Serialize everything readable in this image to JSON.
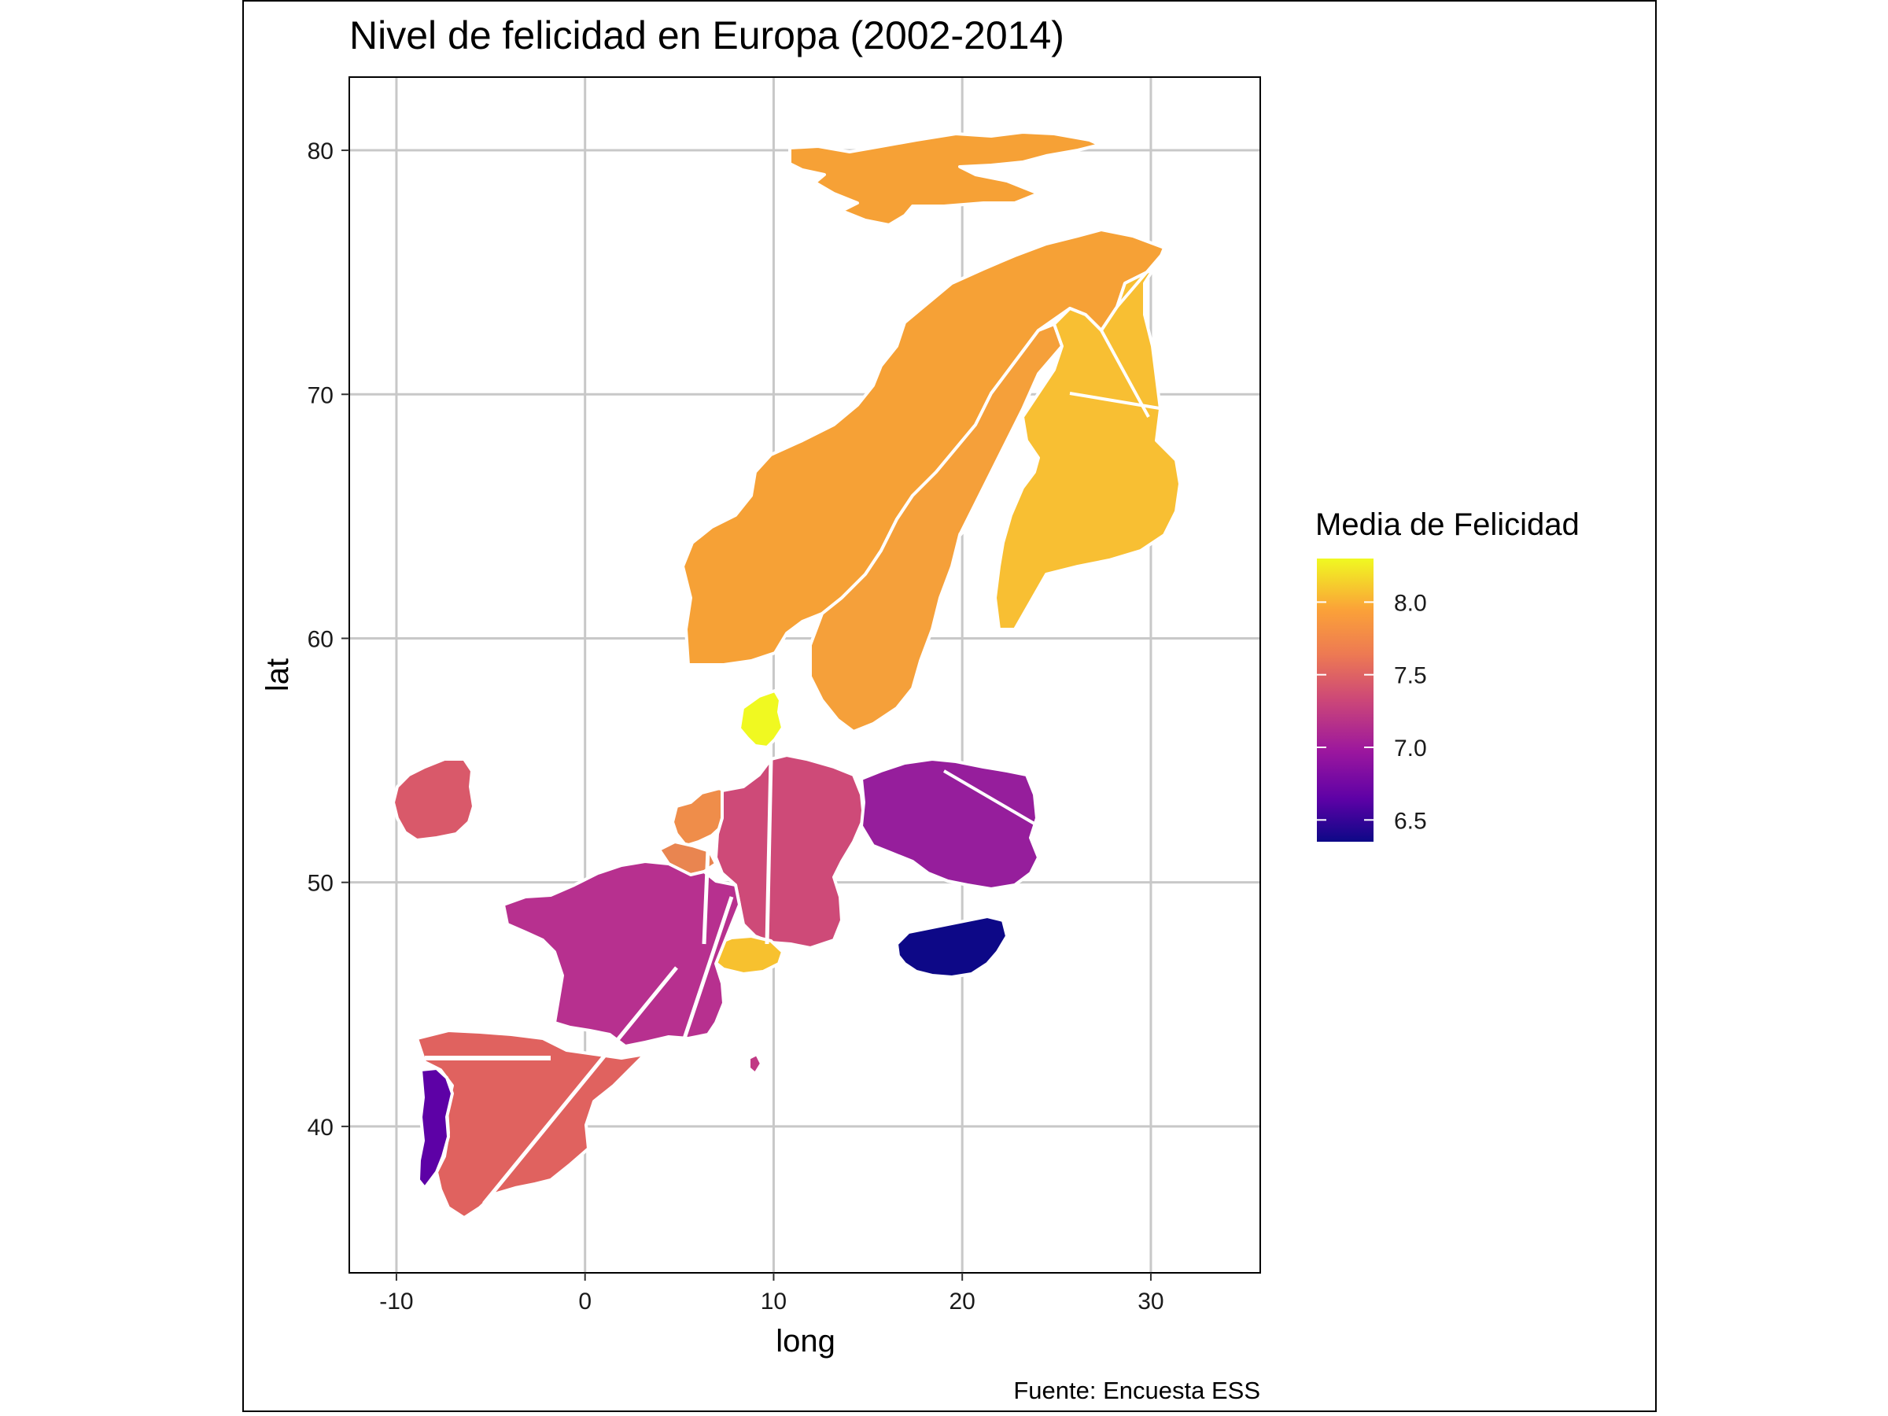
{
  "chart_data": {
    "type": "map",
    "title": "Nivel de felicidad en Europa (2002-2014)",
    "xlabel": "long",
    "ylabel": "lat",
    "caption": "Fuente: Encuesta ESS",
    "xlim": [
      -12.5,
      35.8
    ],
    "ylim": [
      34,
      83
    ],
    "xticks": [
      -10,
      0,
      10,
      20,
      30
    ],
    "yticks": [
      40,
      50,
      60,
      70,
      80
    ],
    "grid": true,
    "legend": {
      "title": "Media de Felicidad",
      "position": "right",
      "palette": "plasma",
      "range": [
        6.35,
        8.3
      ],
      "breaks": [
        8.0,
        7.5,
        7.0,
        6.5
      ],
      "break_labels": [
        "8.0",
        "7.5",
        "7.0",
        "6.5"
      ]
    },
    "regions": [
      {
        "id": "svalbard",
        "value": 7.94,
        "color": "#f6a136"
      },
      {
        "id": "norway",
        "value": 7.94,
        "color": "#f6a136"
      },
      {
        "id": "sweden",
        "value": 7.92,
        "color": "#f5a03a"
      },
      {
        "id": "finland",
        "value": 8.04,
        "color": "#f8bf33"
      },
      {
        "id": "denmark",
        "value": 8.3,
        "color": "#f0f921"
      },
      {
        "id": "netherlands",
        "value": 7.75,
        "color": "#ef8d4a"
      },
      {
        "id": "belgium",
        "value": 7.7,
        "color": "#e98550"
      },
      {
        "id": "germany",
        "value": 7.3,
        "color": "#ce4a78"
      },
      {
        "id": "switzerland",
        "value": 8.05,
        "color": "#f7c12f"
      },
      {
        "id": "ireland",
        "value": 7.45,
        "color": "#d9596a"
      },
      {
        "id": "france",
        "value": 7.1,
        "color": "#b7308f"
      },
      {
        "id": "spain",
        "value": 7.5,
        "color": "#e0625f"
      },
      {
        "id": "portugal",
        "value": 6.8,
        "color": "#5d01a6"
      },
      {
        "id": "poland",
        "value": 7.0,
        "color": "#961e9c"
      },
      {
        "id": "hungary",
        "value": 6.35,
        "color": "#0d0887"
      },
      {
        "id": "italy-fragment",
        "value": 7.1,
        "color": "#c13a84"
      }
    ]
  }
}
